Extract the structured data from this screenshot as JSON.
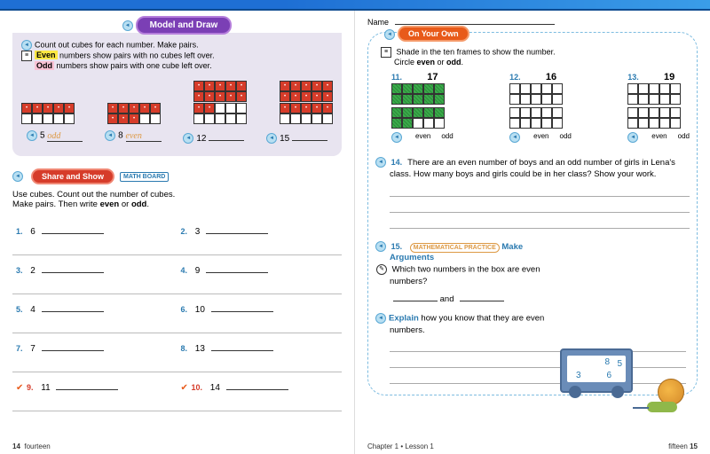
{
  "left": {
    "pill_model": "Model and Draw",
    "intro1": "Count out cubes for each number. Make pairs.",
    "even_word": "Even",
    "intro2": " numbers show pairs with no cubes left over.",
    "odd_word": "Odd",
    "intro3": " numbers show pairs with one cube left over.",
    "examples": [
      {
        "n": "5",
        "ans": "odd",
        "fill": 5,
        "rows": 1
      },
      {
        "n": "8",
        "ans": "even",
        "fill": 8,
        "rows": 1
      },
      {
        "n": "12",
        "ans": "",
        "fill": 12,
        "rows": 2
      },
      {
        "n": "15",
        "ans": "",
        "fill": 15,
        "rows": 2
      }
    ],
    "pill_share": "Share and Show",
    "mathboard": "MATH BOARD",
    "share_text1": "Use cubes. Count out the number of cubes.",
    "share_text2": "Make pairs. Then write ",
    "share_even": "even",
    "share_or": " or ",
    "share_odd": "odd",
    "questions": [
      {
        "num": "1.",
        "val": "6"
      },
      {
        "num": "2.",
        "val": "3"
      },
      {
        "num": "3.",
        "val": "2"
      },
      {
        "num": "4.",
        "val": "9"
      },
      {
        "num": "5.",
        "val": "4"
      },
      {
        "num": "6.",
        "val": "10"
      },
      {
        "num": "7.",
        "val": "7"
      },
      {
        "num": "8.",
        "val": "13"
      },
      {
        "num": "9.",
        "val": "11",
        "check": true
      },
      {
        "num": "10.",
        "val": "14",
        "check": true
      }
    ],
    "pgnum": "14",
    "pgword": "fourteen"
  },
  "right": {
    "name": "Name",
    "pill_own": "On Your Own",
    "instr1": "Shade in the ten frames to show the number.",
    "instr2": "Circle ",
    "even": "even",
    "or": " or ",
    "odd": "odd",
    "tens": [
      {
        "q": "11.",
        "n": "17",
        "fill": 17,
        "green": true
      },
      {
        "q": "12.",
        "n": "16",
        "fill": 0,
        "green": false
      },
      {
        "q": "13.",
        "n": "19",
        "fill": 0,
        "green": false
      }
    ],
    "q14num": "14.",
    "q14": "There are an even number of boys and an odd number of girls in Lena's class. How many boys and girls could be in her class? Show your work.",
    "q15num": "15.",
    "q15badge": "MATHEMATICAL PRACTICE",
    "q15title": "Make Arguments",
    "q15a": "Which two numbers  in the box are even numbers?",
    "q15and": " and ",
    "q15explain": "Explain",
    "q15b": " how you know that they are even numbers.",
    "wagon_nums": {
      "a": "8",
      "b": "5",
      "c": "3",
      "d": "6"
    },
    "chapter": "Chapter 1 • Lesson 1",
    "pgword": "fifteen",
    "pgnum": "15"
  }
}
